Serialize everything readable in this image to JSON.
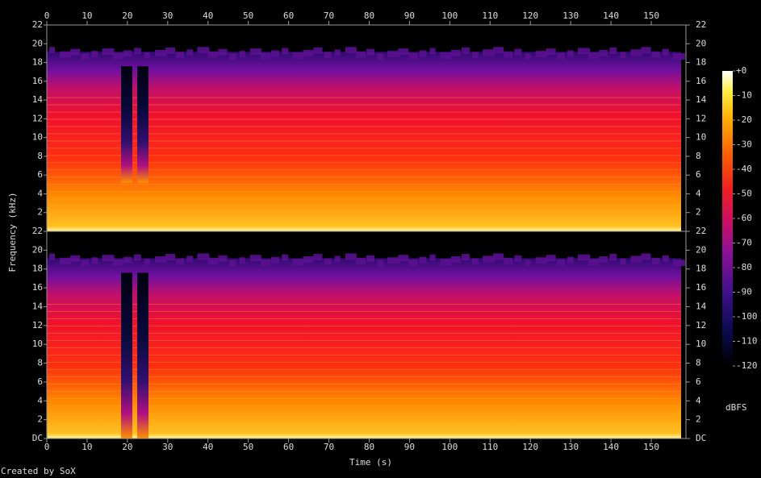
{
  "chart_data": {
    "type": "spectrogram",
    "x_label": "Time (s)",
    "y_label": "Frequency (kHz)",
    "xlim": [
      0,
      158.6
    ],
    "xticks": [
      0,
      10,
      20,
      30,
      40,
      50,
      60,
      70,
      80,
      90,
      100,
      110,
      120,
      130,
      140,
      150
    ],
    "channels": [
      {
        "ylim": [
          0,
          22
        ],
        "yticks": [
          2,
          4,
          6,
          8,
          10,
          12,
          14,
          16,
          18,
          20,
          22
        ]
      },
      {
        "ylim": [
          0,
          22
        ],
        "yticks": [
          {
            "value": 0,
            "label": "DC"
          },
          2,
          4,
          6,
          8,
          10,
          12,
          14,
          16,
          18,
          20,
          22
        ]
      }
    ],
    "colorbar": {
      "label": "dBFS",
      "lim": [
        -120,
        0
      ],
      "ticks": [
        {
          "value": 0,
          "label": "+0"
        },
        -10,
        -20,
        -30,
        -40,
        -50,
        -60,
        -70,
        -80,
        -90,
        -100,
        -110,
        -120
      ]
    },
    "credit": "Created by SoX"
  }
}
